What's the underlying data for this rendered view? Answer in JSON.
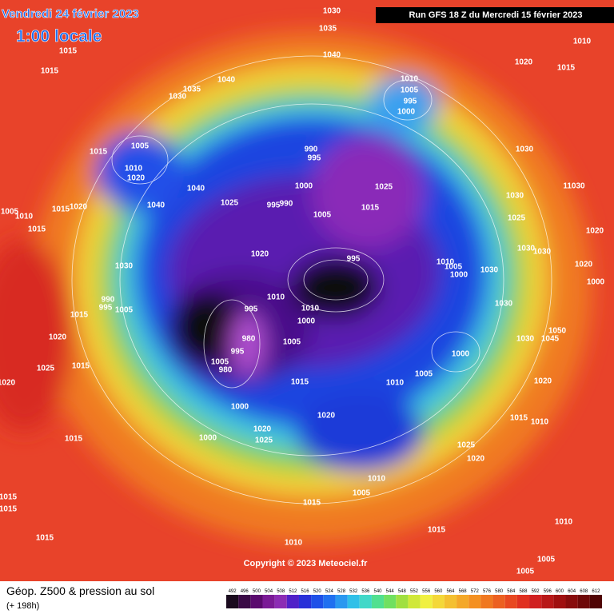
{
  "header": {
    "date": "Vendredi 24 février 2023",
    "time": "1:00 locale",
    "run": "Run GFS 18 Z du Mercredi 15 février 2023"
  },
  "copyright": "Copyright © 2023 Meteociel.fr",
  "footer": {
    "title": "Géop. Z500 & pression au sol",
    "lead": "(+ 198h)"
  },
  "isobars": [
    1030,
    1035,
    1040,
    1015,
    1015,
    1040,
    1035,
    1030,
    1010,
    1005,
    995,
    1000,
    1010,
    1020,
    1015,
    1015,
    1005,
    1010,
    1020,
    1040,
    1025,
    1040,
    990,
    995,
    1000,
    995,
    990,
    1005,
    1015,
    1025,
    1030,
    1030,
    11030,
    1025,
    1020,
    1030,
    1030,
    1020,
    1000,
    1010,
    1005,
    1000,
    1030,
    995,
    1020,
    1030,
    1010,
    1010,
    1000,
    995,
    980,
    995,
    1005,
    980,
    1005,
    1030,
    1050,
    1045,
    1030,
    1000,
    1005,
    1010,
    1015,
    1000,
    1020,
    1020,
    1025,
    1000,
    1015,
    1020,
    1015,
    1010,
    1025,
    1020,
    1010,
    1005,
    1015,
    1015,
    1010,
    1005,
    1005,
    1010,
    1015,
    1015,
    1015,
    1025,
    1015,
    1020,
    1015,
    1020,
    1005,
    1010,
    1015,
    1015,
    1020,
    990,
    995,
    1005
  ],
  "legend": {
    "scale": [
      492,
      496,
      500,
      504,
      508,
      512,
      516,
      520,
      524,
      528,
      532,
      536,
      540,
      544,
      548,
      552,
      556,
      560,
      564,
      568,
      572,
      576,
      580,
      584,
      588,
      592,
      596,
      600,
      604,
      608,
      612
    ],
    "colors": [
      "#1a0a1e",
      "#3a0a46",
      "#5a0a6e",
      "#7a1a96",
      "#8c2cb4",
      "#5020c8",
      "#2830d8",
      "#1e50e8",
      "#2070f0",
      "#2a98f0",
      "#30c0e8",
      "#40d8c8",
      "#50e090",
      "#70e060",
      "#a0e040",
      "#d0e838",
      "#f0f040",
      "#f4d838",
      "#f4c030",
      "#f4a828",
      "#f49020",
      "#f07820",
      "#ec6020",
      "#e84820",
      "#e03020",
      "#d02020",
      "#b81818",
      "#a01010",
      "#880c0c",
      "#6e0808",
      "#500404"
    ]
  }
}
